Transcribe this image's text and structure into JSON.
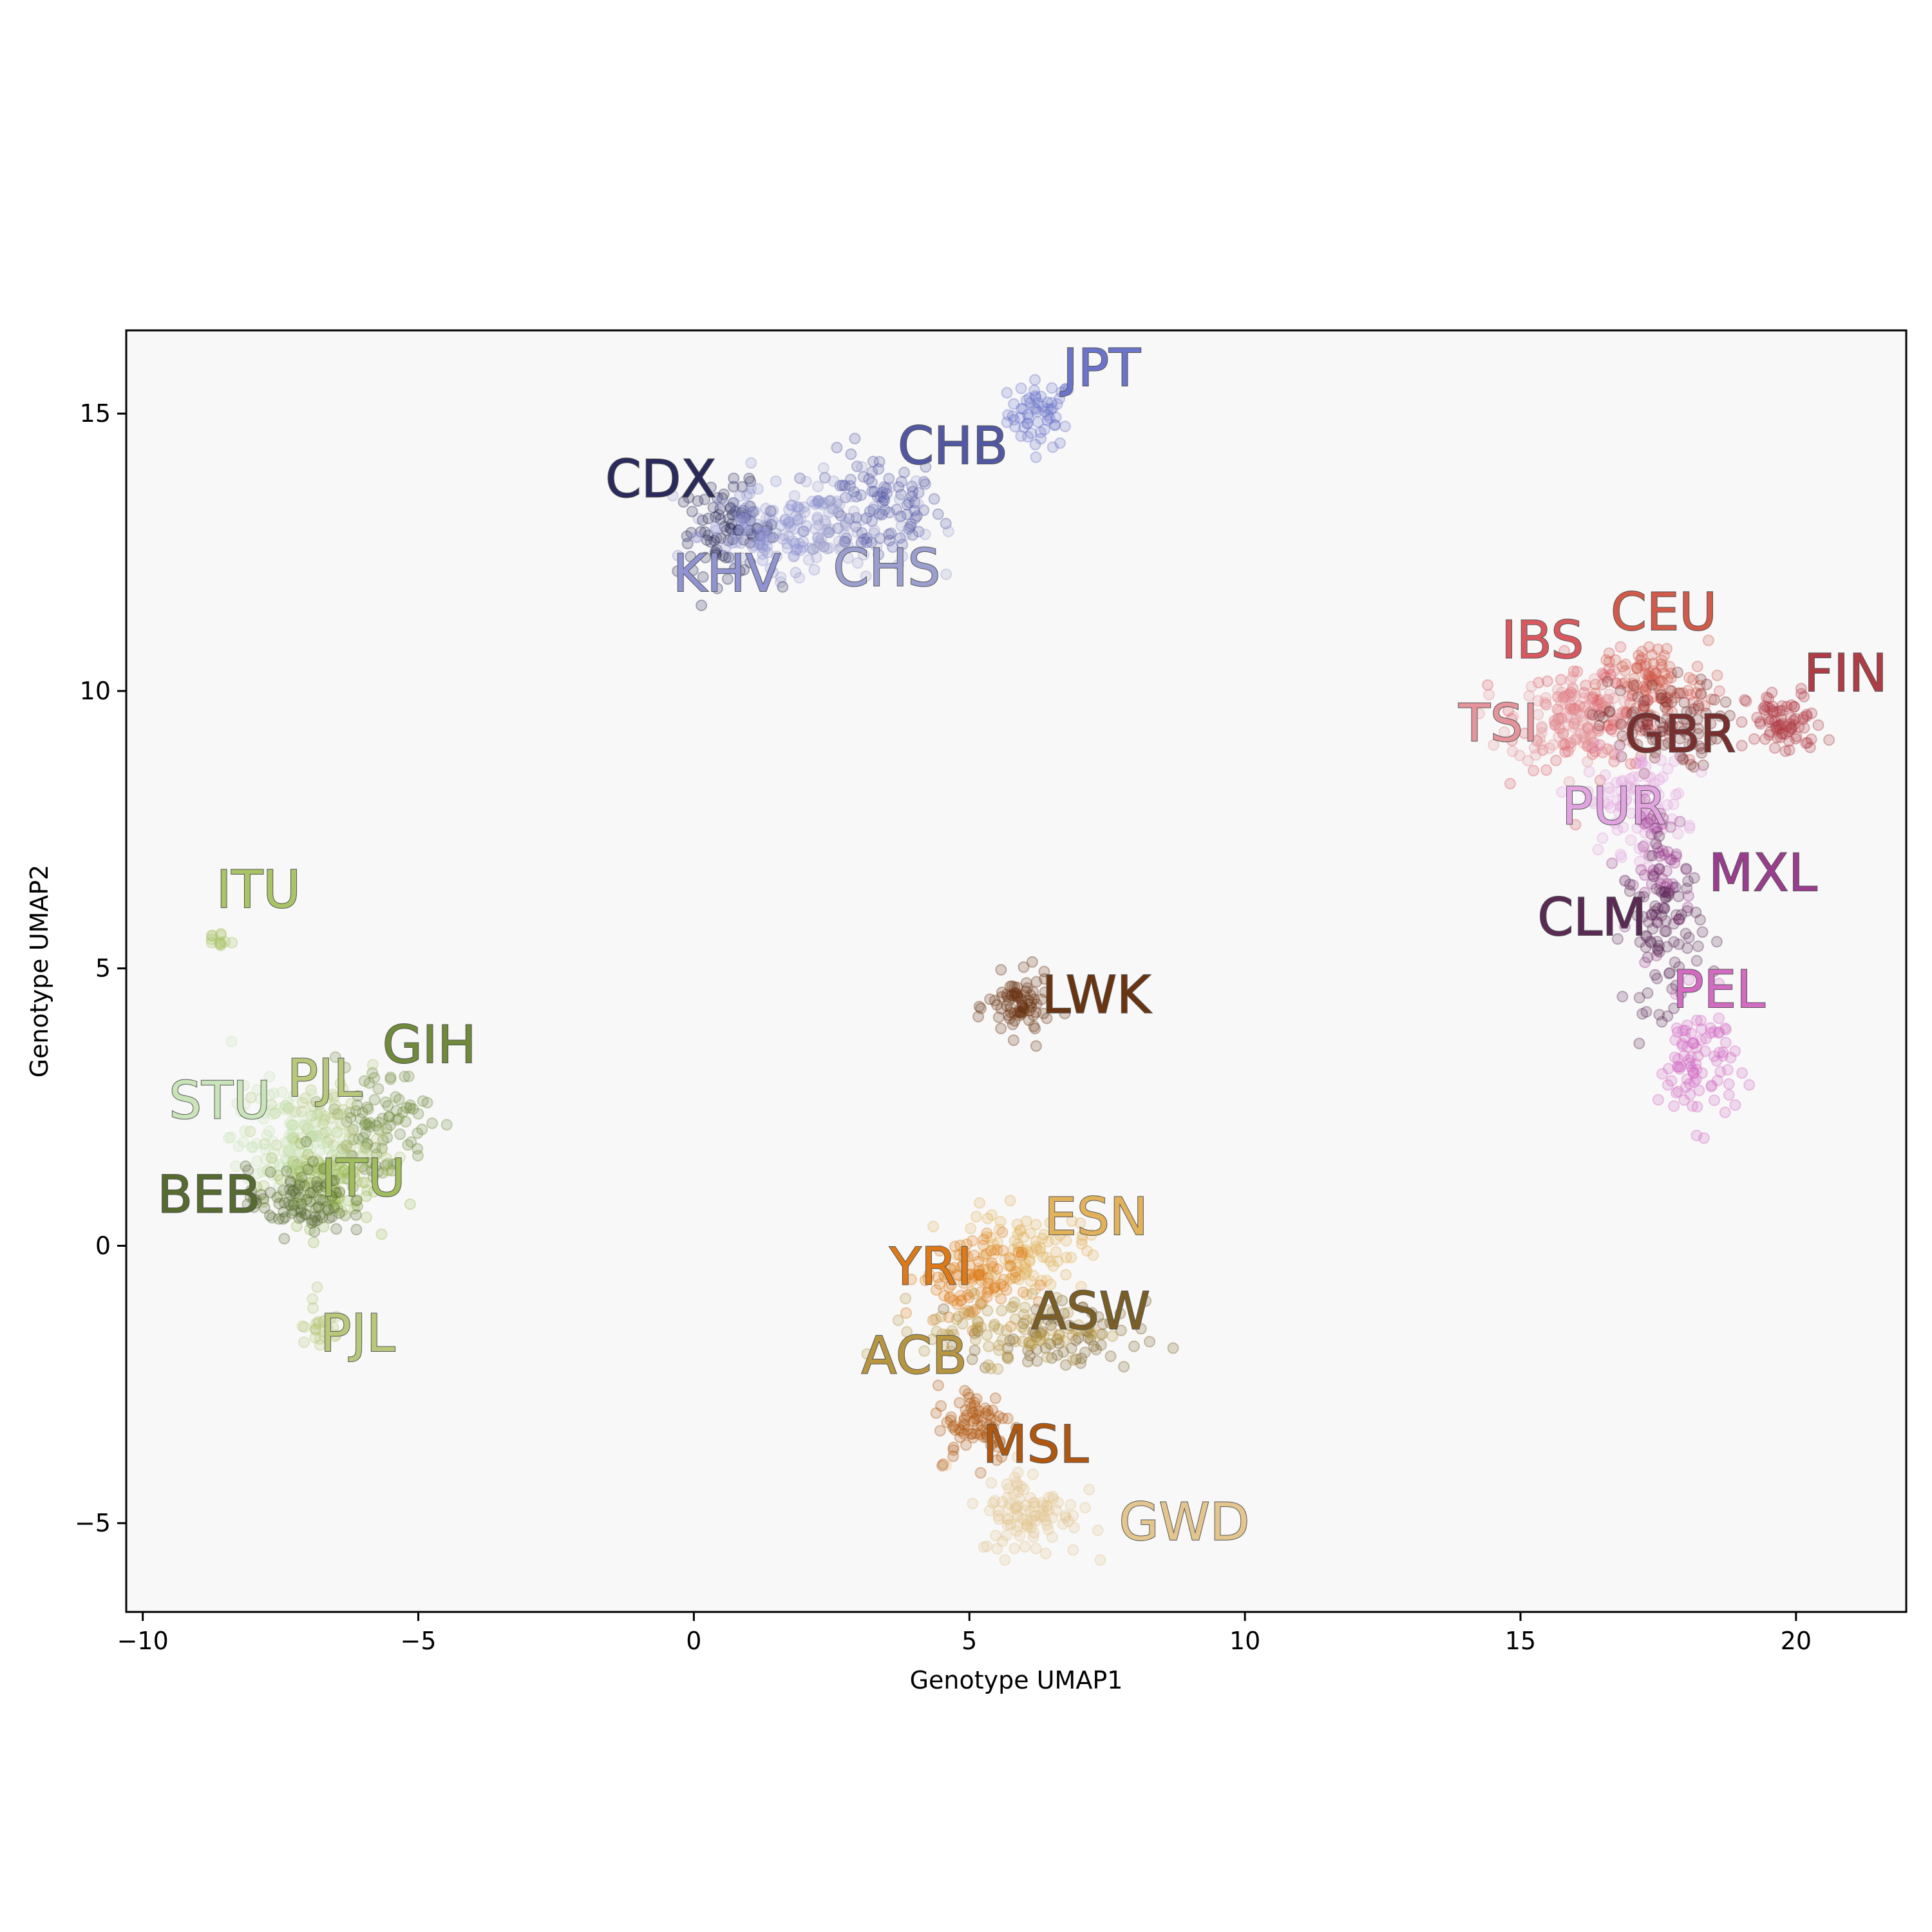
{
  "chart_data": {
    "type": "scatter",
    "title": "",
    "xlabel": "Genotype UMAP1",
    "ylabel": "Genotype UMAP2",
    "xlim": [
      -10.3,
      22
    ],
    "ylim": [
      -6.6,
      16.5
    ],
    "xticks": [
      -10,
      -5,
      0,
      5,
      10,
      15,
      20
    ],
    "yticks": [
      -5,
      0,
      5,
      10,
      15
    ],
    "background": "#f8f8f8",
    "grid": false,
    "legend": "none",
    "clusters": [
      {
        "name": "JPT",
        "color": "#6b74c9",
        "center": [
          6.3,
          15.0
        ],
        "spread": [
          0.3,
          0.3
        ],
        "n": 60,
        "label_pos": [
          7.4,
          15.5
        ]
      },
      {
        "name": "CHB",
        "color": "#5257a3",
        "center": [
          3.3,
          13.3
        ],
        "spread": [
          0.6,
          0.5
        ],
        "n": 100,
        "label_pos": [
          4.7,
          14.1
        ]
      },
      {
        "name": "CHS",
        "color": "#9b9fcf",
        "center": [
          2.4,
          13.0
        ],
        "spread": [
          0.8,
          0.45
        ],
        "n": 100,
        "label_pos": [
          3.5,
          11.9
        ]
      },
      {
        "name": "CDX",
        "color": "#2a2b5c",
        "center": [
          0.6,
          12.9
        ],
        "spread": [
          0.45,
          0.4
        ],
        "n": 90,
        "label_pos": [
          -0.6,
          13.5
        ]
      },
      {
        "name": "KHV",
        "color": "#8f93d2",
        "center": [
          1.3,
          12.8
        ],
        "spread": [
          0.6,
          0.4
        ],
        "n": 90,
        "label_pos": [
          0.6,
          11.8
        ]
      },
      {
        "name": "IBS",
        "color": "#d9585f",
        "center": [
          16.4,
          9.6
        ],
        "spread": [
          0.7,
          0.5
        ],
        "n": 110,
        "label_pos": [
          15.4,
          10.6
        ]
      },
      {
        "name": "CEU",
        "color": "#d25a4a",
        "center": [
          17.4,
          10.1
        ],
        "spread": [
          0.5,
          0.4
        ],
        "n": 100,
        "label_pos": [
          17.6,
          11.1
        ]
      },
      {
        "name": "TSI",
        "color": "#e4949b",
        "center": [
          16.0,
          9.5
        ],
        "spread": [
          0.6,
          0.4
        ],
        "n": 100,
        "label_pos": [
          14.6,
          9.1
        ]
      },
      {
        "name": "GBR",
        "color": "#7a2f2f",
        "center": [
          17.5,
          9.4
        ],
        "spread": [
          0.55,
          0.4
        ],
        "n": 90,
        "label_pos": [
          17.9,
          8.9
        ]
      },
      {
        "name": "FIN",
        "color": "#b03c45",
        "center": [
          19.8,
          9.4
        ],
        "spread": [
          0.35,
          0.3
        ],
        "n": 80,
        "label_pos": [
          20.9,
          10.0
        ]
      },
      {
        "name": "PUR",
        "color": "#e2a4e0",
        "center": [
          17.1,
          8.0
        ],
        "spread": [
          0.45,
          0.45
        ],
        "n": 100,
        "label_pos": [
          16.7,
          7.6
        ]
      },
      {
        "name": "MXL",
        "color": "#9a3d8f",
        "center": [
          17.6,
          6.8
        ],
        "spread": [
          0.25,
          0.6
        ],
        "n": 60,
        "label_pos": [
          19.4,
          6.4
        ]
      },
      {
        "name": "CLM",
        "color": "#5a2a55",
        "center": [
          17.6,
          5.7
        ],
        "spread": [
          0.35,
          0.7
        ],
        "n": 90,
        "label_pos": [
          16.3,
          5.6
        ]
      },
      {
        "name": "PEL",
        "color": "#d36bc2",
        "center": [
          18.2,
          3.3
        ],
        "spread": [
          0.35,
          0.55
        ],
        "n": 90,
        "label_pos": [
          18.6,
          4.3
        ]
      },
      {
        "name": "LWK",
        "color": "#6b3410",
        "center": [
          5.9,
          4.3
        ],
        "spread": [
          0.28,
          0.28
        ],
        "n": 80,
        "label_pos": [
          7.3,
          4.2
        ]
      },
      {
        "name": "ESN",
        "color": "#e2b25a",
        "center": [
          6.0,
          -0.1
        ],
        "spread": [
          0.55,
          0.35
        ],
        "n": 100,
        "label_pos": [
          7.3,
          0.2
        ]
      },
      {
        "name": "YRI",
        "color": "#dd7a17",
        "center": [
          5.0,
          -0.6
        ],
        "spread": [
          0.45,
          0.4
        ],
        "n": 100,
        "label_pos": [
          4.3,
          -0.7
        ]
      },
      {
        "name": "ASW",
        "color": "#7a5e26",
        "center": [
          6.6,
          -1.7
        ],
        "spread": [
          0.8,
          0.35
        ],
        "n": 70,
        "label_pos": [
          7.2,
          -1.5
        ]
      },
      {
        "name": "ACB",
        "color": "#b89640",
        "center": [
          5.8,
          -1.5
        ],
        "spread": [
          0.8,
          0.3
        ],
        "n": 90,
        "label_pos": [
          4.0,
          -2.3
        ]
      },
      {
        "name": "MSL",
        "color": "#b0570f",
        "center": [
          5.1,
          -3.2
        ],
        "spread": [
          0.35,
          0.35
        ],
        "n": 80,
        "label_pos": [
          6.2,
          -3.9
        ]
      },
      {
        "name": "GWD",
        "color": "#e3c58e",
        "center": [
          6.1,
          -4.8
        ],
        "spread": [
          0.45,
          0.4
        ],
        "n": 100,
        "label_pos": [
          8.9,
          -5.3
        ]
      },
      {
        "name": "GIH",
        "color": "#6f8a3a",
        "center": [
          -5.8,
          2.2
        ],
        "spread": [
          0.5,
          0.55
        ],
        "n": 100,
        "label_pos": [
          -4.8,
          3.3
        ]
      },
      {
        "name": "PJL",
        "color": "#b8c87a",
        "center": [
          -6.7,
          1.9
        ],
        "spread": [
          0.55,
          0.5
        ],
        "n": 100,
        "label_pos": [
          -6.7,
          2.7
        ]
      },
      {
        "name": "STU",
        "color": "#c9e4b8",
        "center": [
          -7.4,
          1.9
        ],
        "spread": [
          0.5,
          0.5
        ],
        "n": 100,
        "label_pos": [
          -8.6,
          2.3
        ]
      },
      {
        "name": "ITU",
        "color": "#9fbd5a",
        "center": [
          -6.8,
          1.1
        ],
        "spread": [
          0.5,
          0.35
        ],
        "n": 90,
        "label_pos": [
          -6.0,
          0.9
        ]
      },
      {
        "name": "BEB",
        "color": "#556b2f",
        "center": [
          -7.2,
          0.8
        ],
        "spread": [
          0.45,
          0.3
        ],
        "n": 90,
        "label_pos": [
          -8.8,
          0.6
        ]
      },
      {
        "name": "ITU",
        "color": "#a8c466",
        "center": [
          -8.6,
          5.5
        ],
        "spread": [
          0.1,
          0.08
        ],
        "n": 12,
        "label_pos": [
          -7.9,
          6.1
        ]
      },
      {
        "name": "PJL",
        "color": "#b8c87a",
        "center": [
          -6.8,
          -1.4
        ],
        "spread": [
          0.2,
          0.3
        ],
        "n": 25,
        "label_pos": [
          -6.1,
          -1.9
        ]
      }
    ]
  }
}
